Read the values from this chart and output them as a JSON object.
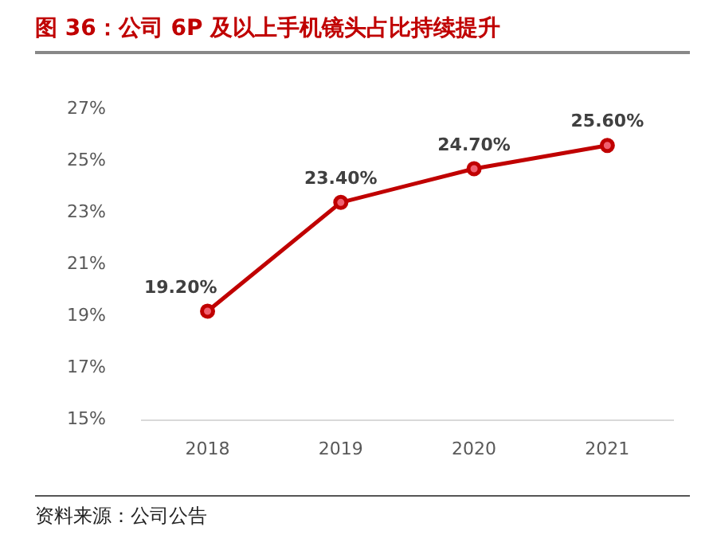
{
  "chart_data": {
    "type": "line",
    "title": "图 36：公司 6P 及以上手机镜头占比持续提升",
    "categories": [
      "2018",
      "2019",
      "2020",
      "2021"
    ],
    "series": [
      {
        "color": "#c00000",
        "values": [
          19.2,
          23.4,
          24.7,
          25.6
        ],
        "value_labels": [
          "19.20%",
          "23.40%",
          "24.70%",
          "25.60%"
        ]
      }
    ],
    "ylim": [
      15,
      27
    ],
    "yticks": [
      {
        "value": 15,
        "label": "15%"
      },
      {
        "value": 17,
        "label": "17%"
      },
      {
        "value": 19,
        "label": "19%"
      },
      {
        "value": 21,
        "label": "21%"
      },
      {
        "value": 23,
        "label": "23%"
      },
      {
        "value": 25,
        "label": "25%"
      },
      {
        "value": 27,
        "label": "27%"
      }
    ],
    "grid": false,
    "legend": false,
    "marker": "circle",
    "line_style": "solid",
    "annotations": [
      "资料来源：公司公告"
    ]
  }
}
